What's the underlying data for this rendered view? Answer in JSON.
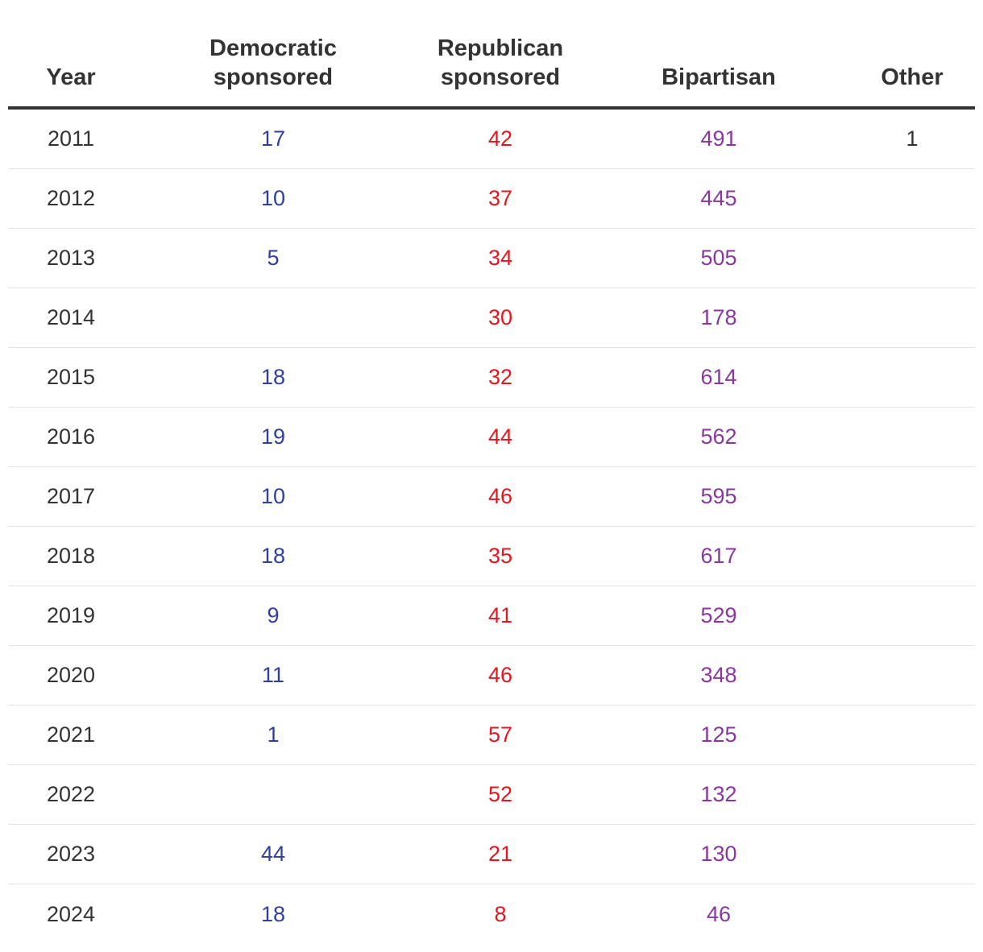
{
  "chart_data": {
    "type": "table",
    "columns": [
      "Year",
      "Democratic\nsponsored",
      "Republican\nsponsored",
      "Bipartisan",
      "Other"
    ],
    "rows": [
      {
        "year": "2011",
        "democratic": "17",
        "republican": "42",
        "bipartisan": "491",
        "other": "1"
      },
      {
        "year": "2012",
        "democratic": "10",
        "republican": "37",
        "bipartisan": "445",
        "other": ""
      },
      {
        "year": "2013",
        "democratic": "5",
        "republican": "34",
        "bipartisan": "505",
        "other": ""
      },
      {
        "year": "2014",
        "democratic": "",
        "republican": "30",
        "bipartisan": "178",
        "other": ""
      },
      {
        "year": "2015",
        "democratic": "18",
        "republican": "32",
        "bipartisan": "614",
        "other": ""
      },
      {
        "year": "2016",
        "democratic": "19",
        "republican": "44",
        "bipartisan": "562",
        "other": ""
      },
      {
        "year": "2017",
        "democratic": "10",
        "republican": "46",
        "bipartisan": "595",
        "other": ""
      },
      {
        "year": "2018",
        "democratic": "18",
        "republican": "35",
        "bipartisan": "617",
        "other": ""
      },
      {
        "year": "2019",
        "democratic": "9",
        "republican": "41",
        "bipartisan": "529",
        "other": ""
      },
      {
        "year": "2020",
        "democratic": "11",
        "republican": "46",
        "bipartisan": "348",
        "other": ""
      },
      {
        "year": "2021",
        "democratic": "1",
        "republican": "57",
        "bipartisan": "125",
        "other": ""
      },
      {
        "year": "2022",
        "democratic": "",
        "republican": "52",
        "bipartisan": "132",
        "other": ""
      },
      {
        "year": "2023",
        "democratic": "44",
        "republican": "21",
        "bipartisan": "130",
        "other": ""
      },
      {
        "year": "2024",
        "democratic": "18",
        "republican": "8",
        "bipartisan": "46",
        "other": ""
      }
    ],
    "colors": {
      "democratic": "#2e3f9f",
      "republican": "#e8141e",
      "bipartisan": "#8a36a0",
      "text": "#333333"
    }
  }
}
